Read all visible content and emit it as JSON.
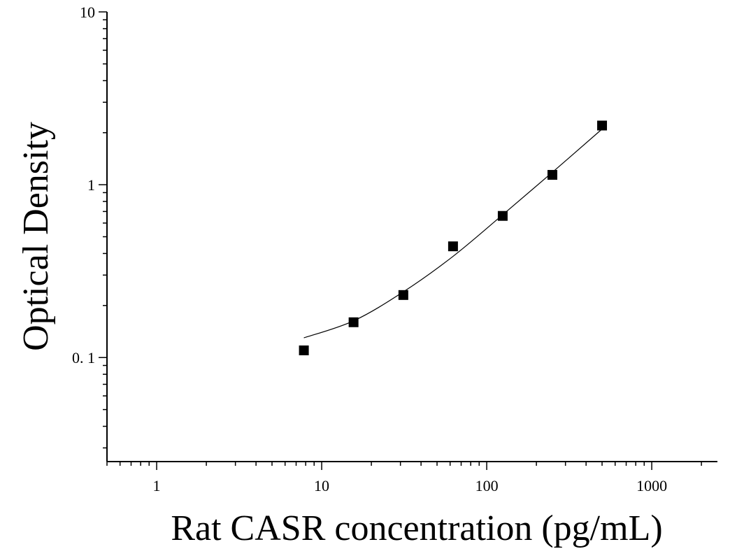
{
  "chart_data": {
    "type": "scatter",
    "xlabel": "Rat CASR concentration (pg/mL)",
    "ylabel": "Optical Density",
    "x_scale": "log",
    "y_scale": "log",
    "xlim": [
      0.5,
      2500
    ],
    "ylim": [
      0.025,
      10
    ],
    "x_ticks": [
      1,
      10,
      100,
      1000
    ],
    "x_tick_labels": [
      "1",
      "10",
      "100",
      "1000"
    ],
    "y_ticks": [
      0.1,
      1,
      10
    ],
    "y_tick_labels": [
      "0. 1",
      "1",
      "10"
    ],
    "grid": false,
    "series": [
      {
        "marker": "square",
        "x": [
          7.8,
          15.6,
          31.25,
          62.5,
          125,
          250,
          500
        ],
        "y": [
          0.11,
          0.16,
          0.23,
          0.44,
          0.66,
          1.14,
          2.2
        ]
      }
    ],
    "fit_curve": {
      "x": [
        7.8,
        15.6,
        31.25,
        62.5,
        125,
        250,
        500
      ],
      "y": [
        0.13,
        0.163,
        0.24,
        0.385,
        0.67,
        1.18,
        2.1
      ]
    },
    "colors": {
      "axis": "#000000",
      "marker": "#000000",
      "curve": "#000000"
    }
  }
}
